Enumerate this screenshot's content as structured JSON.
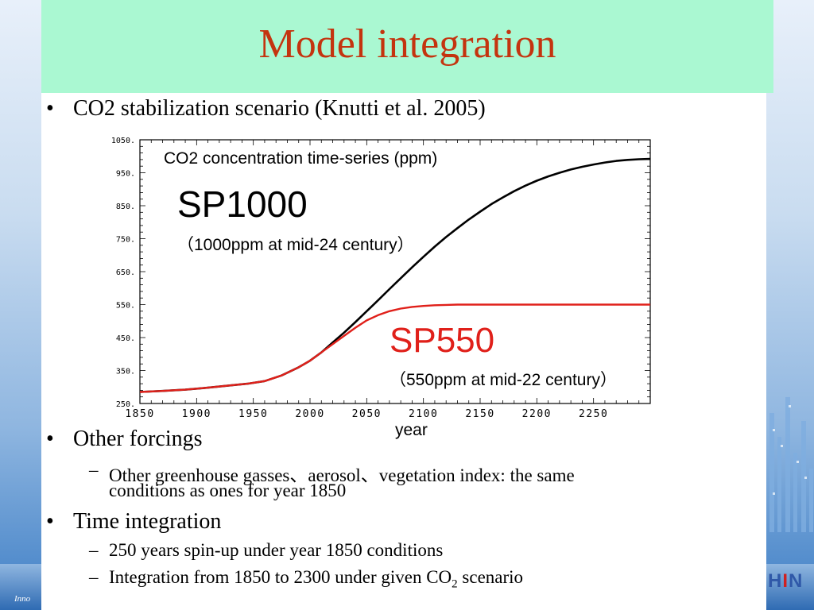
{
  "title": "Model integration",
  "bullets": {
    "b1": "CO2 stabilization scenario (Knutti et al. 2005)",
    "b2": "Other forcings",
    "b2_sub1": "Other greenhouse gasses、aerosol、vegetation index: the same",
    "b2_sub1b": "conditions as ones for  year 1850",
    "b3": "Time integration",
    "b3_sub1": "250 years spin-up under year 1850 conditions",
    "b3_sub2_pre": "Integration from 1850 to 2300 under given CO",
    "b3_sub2_sub": "2",
    "b3_sub2_post": " scenario"
  },
  "footer": {
    "logo_a": "H",
    "logo_b": "I",
    "logo_c": "N",
    "inno": "Inno"
  },
  "colors": {
    "title": "#c4340f",
    "title_band": "#aaf8d2",
    "sp550": "#e0201a",
    "sp1000": "#000000"
  },
  "chart_data": {
    "type": "line",
    "title": "CO2 concentration time-series (ppm)",
    "xlabel": "year",
    "ylabel": "",
    "xlim": [
      1850,
      2300
    ],
    "ylim": [
      250,
      1050
    ],
    "xticks": [
      "1850",
      "1900",
      "1950",
      "2000",
      "2050",
      "2100",
      "2150",
      "2200",
      "2250"
    ],
    "yticks": [
      "250.",
      "350.",
      "450.",
      "550.",
      "650.",
      "750.",
      "850.",
      "950.",
      "1050."
    ],
    "annotations": {
      "sp1000_name": "SP1000",
      "sp1000_desc": "（1000ppm at mid-24 century）",
      "sp550_name": "SP550",
      "sp550_desc": "（550ppm at mid-22 century）"
    },
    "series": [
      {
        "name": "SP1000",
        "color": "#000000",
        "x": [
          1850,
          1870,
          1890,
          1910,
          1930,
          1945,
          1960,
          1975,
          1990,
          2000,
          2010,
          2020,
          2030,
          2040,
          2050,
          2060,
          2070,
          2080,
          2090,
          2100,
          2110,
          2120,
          2130,
          2140,
          2150,
          2160,
          2170,
          2180,
          2190,
          2200,
          2210,
          2220,
          2230,
          2240,
          2250,
          2260,
          2270,
          2280,
          2290,
          2300
        ],
        "y": [
          285,
          288,
          292,
          298,
          305,
          310,
          318,
          335,
          360,
          380,
          405,
          435,
          465,
          497,
          530,
          563,
          597,
          630,
          663,
          695,
          726,
          755,
          782,
          808,
          832,
          855,
          875,
          894,
          911,
          926,
          939,
          950,
          960,
          968,
          975,
          981,
          986,
          989,
          991,
          992
        ]
      },
      {
        "name": "SP550",
        "color": "#e0201a",
        "x": [
          1850,
          1870,
          1890,
          1910,
          1930,
          1945,
          1960,
          1975,
          1990,
          2000,
          2010,
          2020,
          2030,
          2040,
          2050,
          2060,
          2070,
          2080,
          2090,
          2100,
          2110,
          2120,
          2130,
          2140,
          2150,
          2200,
          2250,
          2300
        ],
        "y": [
          285,
          288,
          292,
          298,
          305,
          310,
          318,
          335,
          360,
          380,
          405,
          430,
          455,
          480,
          502,
          518,
          530,
          538,
          543,
          546,
          548,
          549,
          550,
          550,
          550,
          550,
          550,
          550
        ]
      }
    ]
  }
}
